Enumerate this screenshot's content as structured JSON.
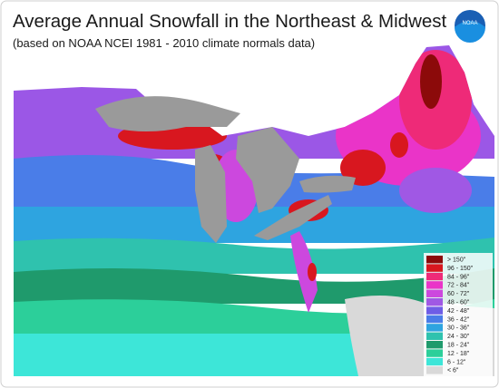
{
  "header": {
    "title": "Average Annual Snowfall in the Northeast & Midwest",
    "subtitle": "(based on NOAA NCEI 1981 - 2010 climate normals data)",
    "logo_text": "NOAA"
  },
  "legend": {
    "entries": [
      {
        "label": "> 150\"",
        "color": "#8c0a0a"
      },
      {
        "label": "96 - 150\"",
        "color": "#d8171f"
      },
      {
        "label": "84 - 96\"",
        "color": "#ee2a78"
      },
      {
        "label": "72 - 84\"",
        "color": "#ea34c8"
      },
      {
        "label": "60 - 72\"",
        "color": "#cc48de"
      },
      {
        "label": "48 - 60\"",
        "color": "#a058e4"
      },
      {
        "label": "42 - 48\"",
        "color": "#6f5de6"
      },
      {
        "label": "36 - 42\"",
        "color": "#4a7de8"
      },
      {
        "label": "30 - 36\"",
        "color": "#2ea4e0"
      },
      {
        "label": "24 - 30\"",
        "color": "#2fc2ae"
      },
      {
        "label": "18 - 24\"",
        "color": "#1f9a6c"
      },
      {
        "label": "12 - 18\"",
        "color": "#2ccf9a"
      },
      {
        "label": "6 - 12\"",
        "color": "#3de6d8"
      },
      {
        "label": "< 6\"",
        "color": "#d9d9d9"
      }
    ]
  }
}
